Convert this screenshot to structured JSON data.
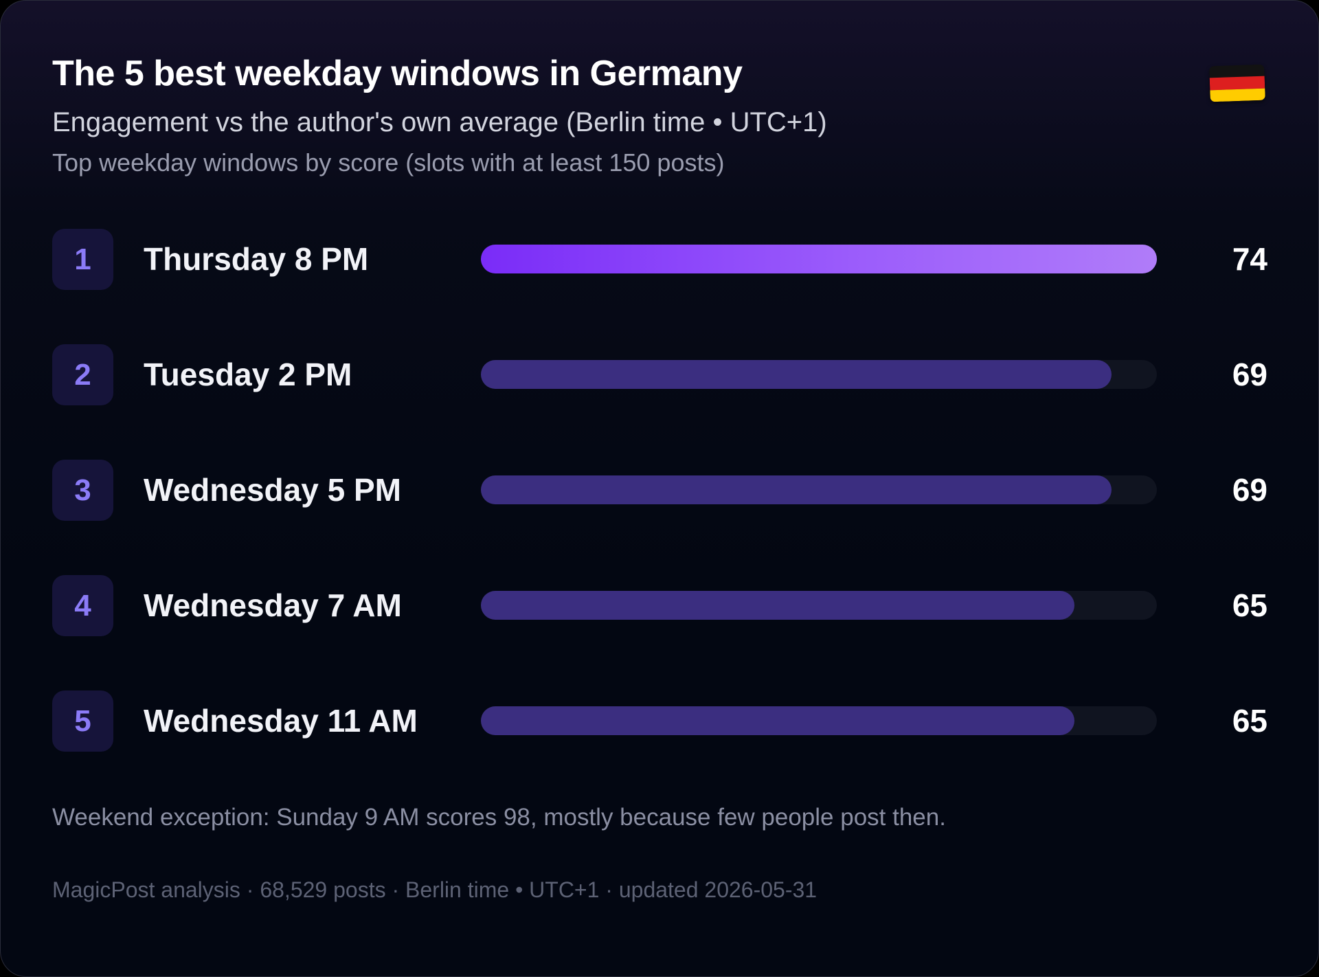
{
  "header": {
    "title": "The 5 best weekday windows in Germany",
    "subtitle": "Engagement vs the author's own average (Berlin time • UTC+1)",
    "note": "Top weekday windows by score (slots with at least 150 posts)",
    "flag_icon": "germany-flag-icon"
  },
  "colors": {
    "rank_badge_bg": "#16143a",
    "rank_number": "#8b7bf7",
    "top_bar_start": "#7a2cf8",
    "top_bar_end": "#b07cf9",
    "bar": "#3b2e80",
    "track": "#101420"
  },
  "chart_data": {
    "type": "bar",
    "orientation": "horizontal",
    "xlim": [
      0,
      74
    ],
    "categories": [
      "Thursday 8 PM",
      "Tuesday 2 PM",
      "Wednesday 5 PM",
      "Wednesday 7 AM",
      "Wednesday 11 AM"
    ],
    "ranks": [
      "1",
      "2",
      "3",
      "4",
      "5"
    ],
    "values": [
      74,
      69,
      69,
      65,
      65
    ],
    "value_labels": [
      "74",
      "69",
      "69",
      "65",
      "65"
    ]
  },
  "exception": "Weekend exception: Sunday 9 AM scores 98, mostly because few people post then.",
  "footer": "MagicPost analysis · 68,529 posts · Berlin time • UTC+1 · updated 2026-05-31"
}
